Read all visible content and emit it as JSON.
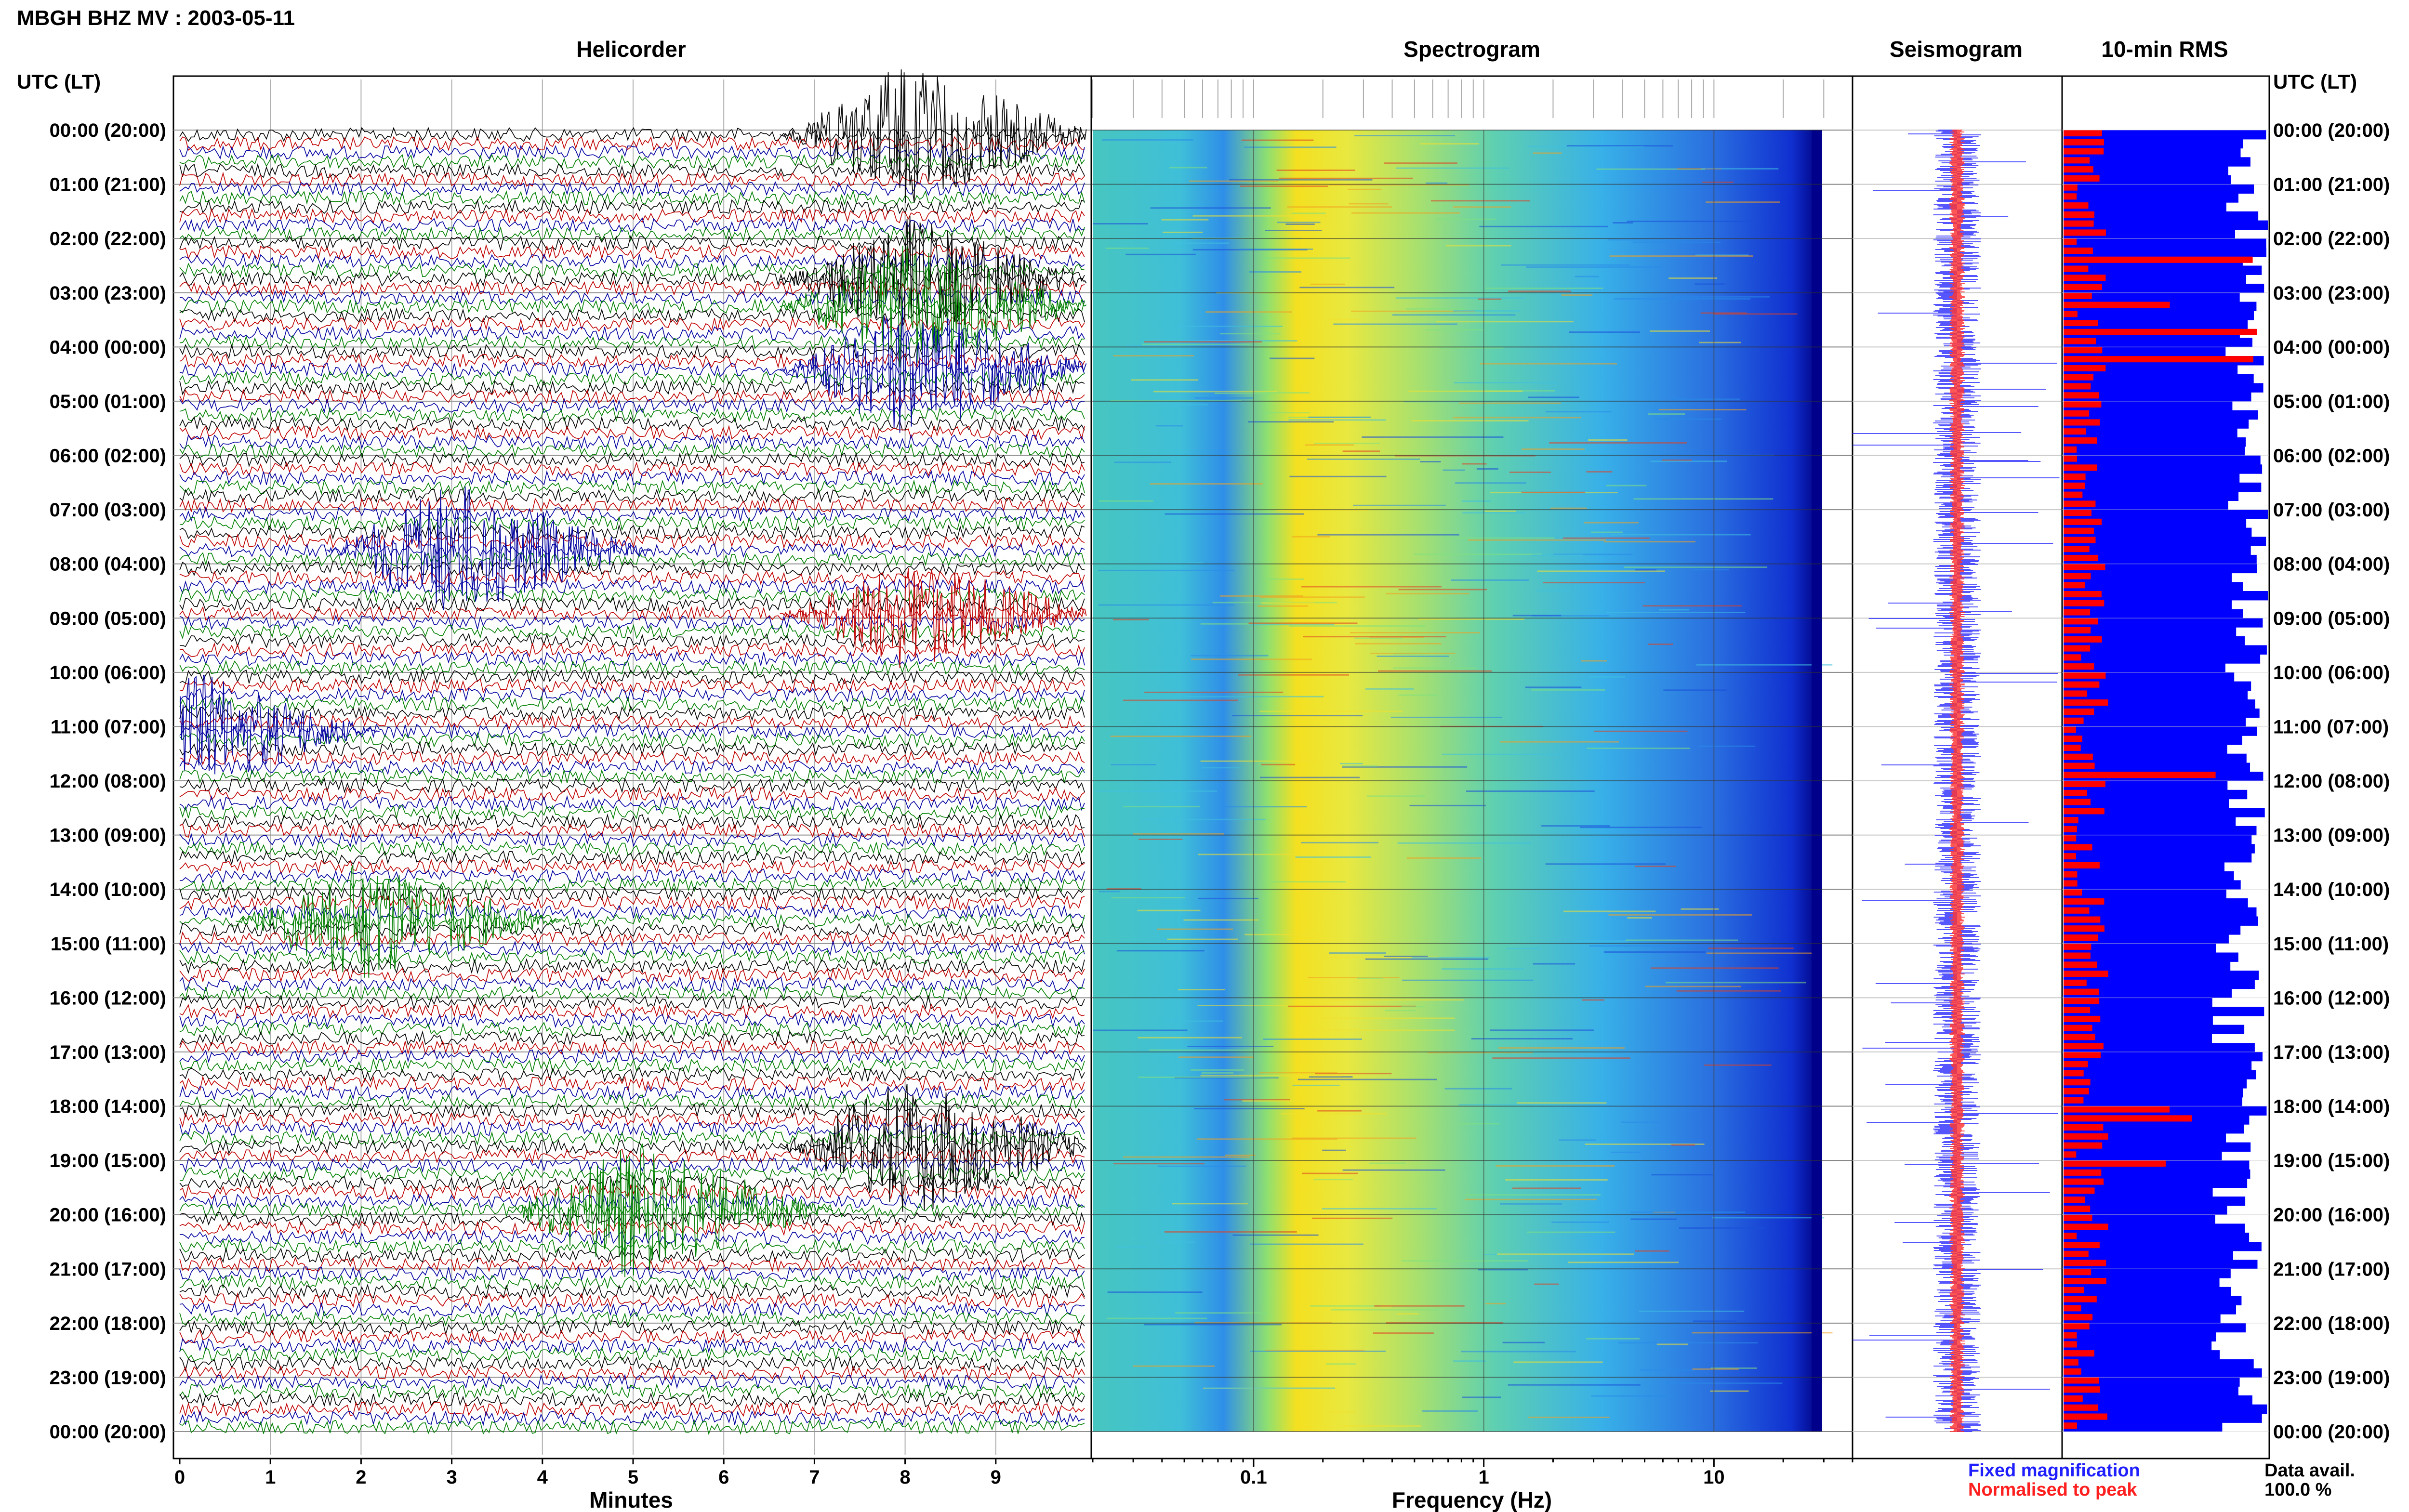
{
  "header": {
    "title": "MBGH BHZ MV : 2003-05-11",
    "utc_label_left": "UTC (LT)",
    "utc_label_right": "UTC (LT)"
  },
  "panels": {
    "helicorder": "Helicorder",
    "spectrogram": "Spectrogram",
    "seismogram": "Seismogram",
    "rms": "10-min RMS"
  },
  "time_labels": [
    "00:00 (20:00)",
    "01:00 (21:00)",
    "02:00 (22:00)",
    "03:00 (23:00)",
    "04:00 (00:00)",
    "05:00 (01:00)",
    "06:00 (02:00)",
    "07:00 (03:00)",
    "08:00 (04:00)",
    "09:00 (05:00)",
    "10:00 (06:00)",
    "11:00 (07:00)",
    "12:00 (08:00)",
    "13:00 (09:00)",
    "14:00 (10:00)",
    "15:00 (11:00)",
    "16:00 (12:00)",
    "17:00 (13:00)",
    "18:00 (14:00)",
    "19:00 (15:00)",
    "20:00 (16:00)",
    "21:00 (17:00)",
    "22:00 (18:00)",
    "23:00 (19:00)",
    "00:00 (20:00)"
  ],
  "legend": {
    "fixed": "Fixed magnification",
    "normalised": "Normalised to peak",
    "fixed_color": "#1f1fff",
    "normalised_color": "#ff1f1f"
  },
  "availability": {
    "label": "Data avail.",
    "value": "100.0 %"
  },
  "chart_data": [
    {
      "type": "line",
      "title": "Helicorder",
      "xlabel": "Minutes",
      "x_ticks": [
        "0",
        "1",
        "2",
        "3",
        "4",
        "5",
        "6",
        "7",
        "8",
        "9"
      ],
      "xlim": [
        0,
        10
      ],
      "rows": 144,
      "row_minutes": 10,
      "trace_colors": [
        "#000000",
        "#c00000",
        "#0000a0",
        "#008000"
      ],
      "events": [
        {
          "time": "00:08",
          "amplitude": 1.0
        },
        {
          "time": "02:48",
          "amplitude": 0.9
        },
        {
          "time": "03:18",
          "amplitude": 0.9
        },
        {
          "time": "04:28",
          "amplitude": 1.0
        },
        {
          "time": "07:43",
          "amplitude": 1.0
        },
        {
          "time": "08:58",
          "amplitude": 0.8
        },
        {
          "time": "11:00",
          "amplitude": 0.9
        },
        {
          "time": "14:32",
          "amplitude": 0.9
        },
        {
          "time": "18:48",
          "amplitude": 1.0
        },
        {
          "time": "19:55",
          "amplitude": 1.0
        }
      ]
    },
    {
      "type": "heatmap",
      "title": "Spectrogram",
      "xlabel": "Frequency (Hz)",
      "x_scale": "log",
      "xlim": [
        0.02,
        40
      ],
      "x_ticks": [
        "0.1",
        "1",
        "10"
      ],
      "colormap": "jet",
      "dominant_band_hz": [
        0.2,
        0.3
      ]
    },
    {
      "type": "line",
      "title": "Seismogram",
      "series": [
        {
          "name": "Fixed magnification",
          "color": "#1f1fff"
        },
        {
          "name": "Normalised to peak",
          "color": "#ff1f1f"
        }
      ]
    },
    {
      "type": "bar",
      "title": "10-min RMS",
      "orientation": "horizontal",
      "rows": 144,
      "series": [
        {
          "name": "Fixed magnification",
          "color": "#0000ff",
          "mean_fraction": 0.9
        },
        {
          "name": "Normalised to peak",
          "color": "#ff0000",
          "mean_fraction": 0.2
        }
      ]
    }
  ]
}
